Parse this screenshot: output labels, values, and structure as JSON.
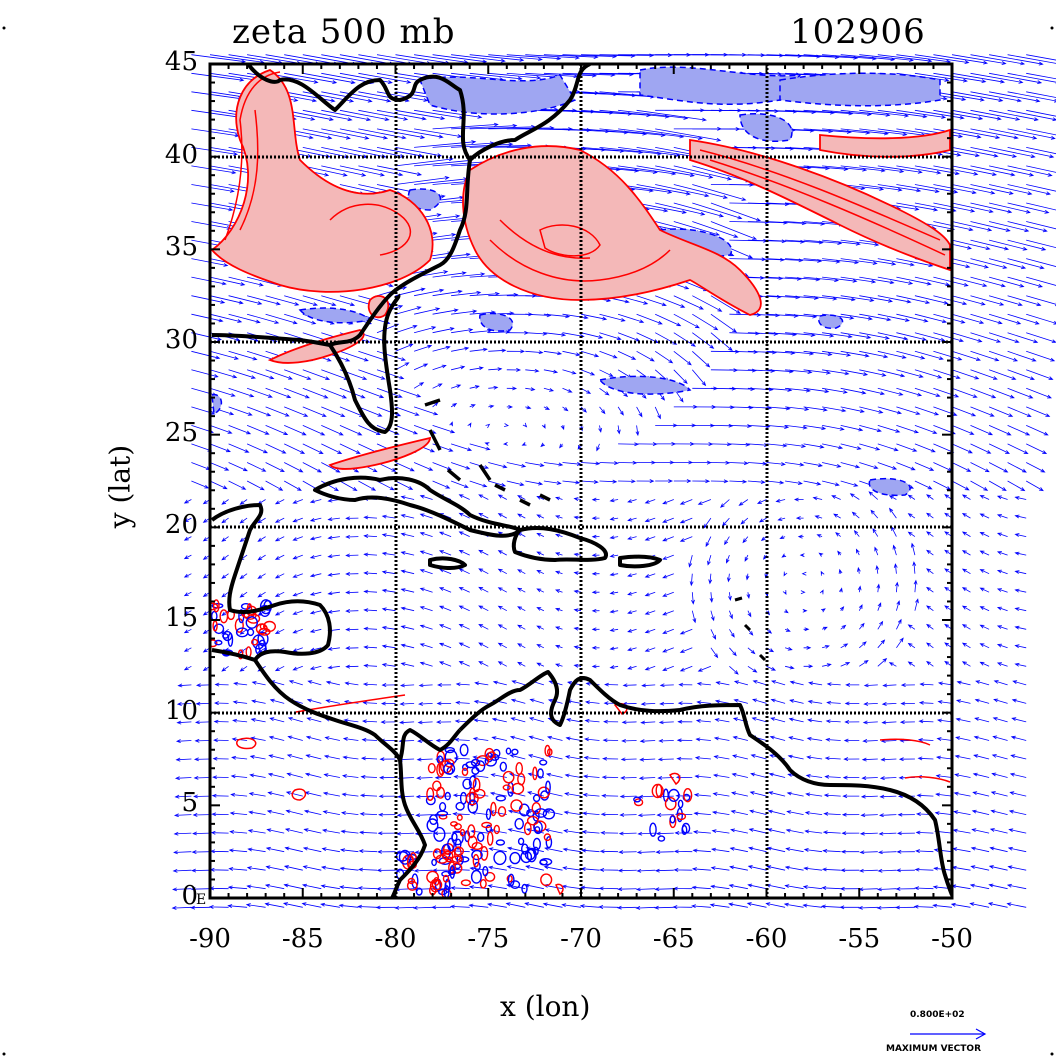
{
  "header": {
    "title_left": "zeta 500 mb",
    "title_right": "102906"
  },
  "axes": {
    "xlabel": "x (lon)",
    "ylabel": "y (lat)",
    "xticks": [
      "-90",
      "-85",
      "-80",
      "-75",
      "-70",
      "-65",
      "-60",
      "-55",
      "-50"
    ],
    "yticks": [
      "45",
      "40",
      "35",
      "30",
      "25",
      "20",
      "15",
      "10",
      "5",
      "0"
    ],
    "xlim": [
      -90,
      -50
    ],
    "ylim": [
      0,
      45
    ],
    "grid_lon": [
      -80,
      -70,
      -60
    ],
    "grid_lat": [
      10,
      20,
      30,
      40
    ]
  },
  "corner_label": "E",
  "vector_legend": {
    "value": "0.800E+02",
    "label": "MAXIMUM VECTOR"
  },
  "colors": {
    "positive_vorticity": "#ff0000",
    "positive_fill": "#f4b8b8",
    "negative_vorticity": "#0000ff",
    "negative_fill": "#9fa6f2",
    "wind_vectors": "#0000ff",
    "coastline": "#000000"
  }
}
